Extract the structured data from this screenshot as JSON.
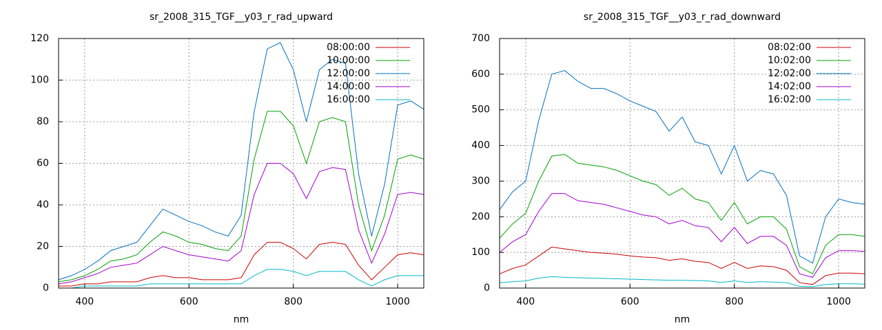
{
  "chart_data": [
    {
      "type": "line",
      "title": "sr_2008_315_TGF__y03_r_rad_upward",
      "xlabel": "nm",
      "x": [
        350,
        375,
        400,
        425,
        450,
        475,
        500,
        525,
        550,
        575,
        600,
        625,
        650,
        675,
        700,
        725,
        750,
        775,
        800,
        825,
        850,
        875,
        900,
        925,
        950,
        975,
        1000,
        1025,
        1050
      ],
      "xlim": [
        350,
        1050
      ],
      "xticks": [
        400,
        600,
        800,
        1000
      ],
      "ylim": [
        0,
        120
      ],
      "yticks": [
        0,
        20,
        40,
        60,
        80,
        100,
        120
      ],
      "grid": true,
      "legend": "top-right",
      "series": [
        {
          "name": "08:00:00",
          "color": "#cc0000",
          "values": [
            1,
            1,
            2,
            2,
            3,
            3,
            3,
            5,
            6,
            5,
            5,
            4,
            4,
            4,
            5,
            16,
            22,
            22,
            19,
            14,
            21,
            22,
            21,
            11,
            4,
            10,
            16,
            17,
            16
          ]
        },
        {
          "name": "10:00:00",
          "color": "#00a000",
          "values": [
            3,
            4,
            6,
            9,
            13,
            14,
            16,
            22,
            27,
            25,
            22,
            21,
            19,
            18,
            25,
            62,
            85,
            85,
            78,
            60,
            80,
            82,
            80,
            40,
            18,
            35,
            62,
            64,
            62
          ]
        },
        {
          "name": "12:00:00",
          "color": "#0070c0",
          "values": [
            4,
            6,
            9,
            13,
            18,
            20,
            22,
            30,
            38,
            35,
            32,
            30,
            27,
            25,
            35,
            85,
            115,
            118,
            105,
            80,
            105,
            110,
            108,
            55,
            25,
            50,
            88,
            90,
            86
          ]
        },
        {
          "name": "14:00:00",
          "color": "#a000d0",
          "values": [
            2,
            3,
            5,
            7,
            10,
            11,
            12,
            16,
            20,
            18,
            16,
            15,
            14,
            13,
            18,
            45,
            60,
            60,
            55,
            43,
            56,
            58,
            57,
            28,
            12,
            26,
            45,
            46,
            45
          ]
        },
        {
          "name": "16:00:00",
          "color": "#00b8c8",
          "values": [
            0,
            0,
            1,
            1,
            1,
            1,
            1,
            2,
            2,
            2,
            2,
            2,
            2,
            2,
            2,
            6,
            9,
            9,
            8,
            6,
            8,
            8,
            8,
            4,
            1,
            4,
            6,
            6,
            6
          ]
        }
      ]
    },
    {
      "type": "line",
      "title": "sr_2008_315_TGF__y03_r_rad_downward",
      "xlabel": "nm",
      "x": [
        350,
        375,
        400,
        425,
        450,
        475,
        500,
        525,
        550,
        575,
        600,
        625,
        650,
        675,
        700,
        725,
        750,
        775,
        800,
        825,
        850,
        875,
        900,
        925,
        950,
        975,
        1000,
        1025,
        1050
      ],
      "xlim": [
        350,
        1050
      ],
      "xticks": [
        400,
        600,
        800,
        1000
      ],
      "ylim": [
        0,
        700
      ],
      "yticks": [
        0,
        100,
        200,
        300,
        400,
        500,
        600,
        700
      ],
      "grid": true,
      "legend": "top-right",
      "series": [
        {
          "name": "08:02:00",
          "color": "#cc0000",
          "values": [
            40,
            55,
            65,
            90,
            115,
            110,
            105,
            100,
            98,
            95,
            90,
            87,
            85,
            78,
            82,
            75,
            72,
            55,
            72,
            55,
            62,
            60,
            50,
            15,
            10,
            35,
            42,
            42,
            40
          ]
        },
        {
          "name": "10:02:00",
          "color": "#00a000",
          "values": [
            140,
            180,
            210,
            300,
            370,
            375,
            350,
            345,
            340,
            330,
            315,
            300,
            290,
            260,
            280,
            250,
            240,
            190,
            240,
            180,
            200,
            200,
            165,
            60,
            40,
            120,
            150,
            150,
            145
          ]
        },
        {
          "name": "12:02:00",
          "color": "#0070c0",
          "values": [
            220,
            270,
            300,
            470,
            600,
            610,
            580,
            560,
            560,
            545,
            525,
            510,
            495,
            440,
            480,
            410,
            400,
            320,
            400,
            300,
            330,
            320,
            260,
            90,
            70,
            200,
            250,
            240,
            235
          ]
        },
        {
          "name": "14:02:00",
          "color": "#a000d0",
          "values": [
            100,
            130,
            150,
            215,
            265,
            265,
            245,
            240,
            235,
            225,
            215,
            205,
            200,
            180,
            190,
            175,
            170,
            130,
            170,
            125,
            145,
            145,
            120,
            40,
            30,
            85,
            105,
            105,
            103
          ]
        },
        {
          "name": "16:02:00",
          "color": "#00b8c8",
          "values": [
            15,
            18,
            20,
            28,
            32,
            30,
            29,
            28,
            27,
            26,
            25,
            24,
            23,
            22,
            22,
            21,
            20,
            16,
            20,
            16,
            18,
            17,
            15,
            5,
            4,
            10,
            12,
            12,
            11
          ]
        }
      ]
    }
  ]
}
